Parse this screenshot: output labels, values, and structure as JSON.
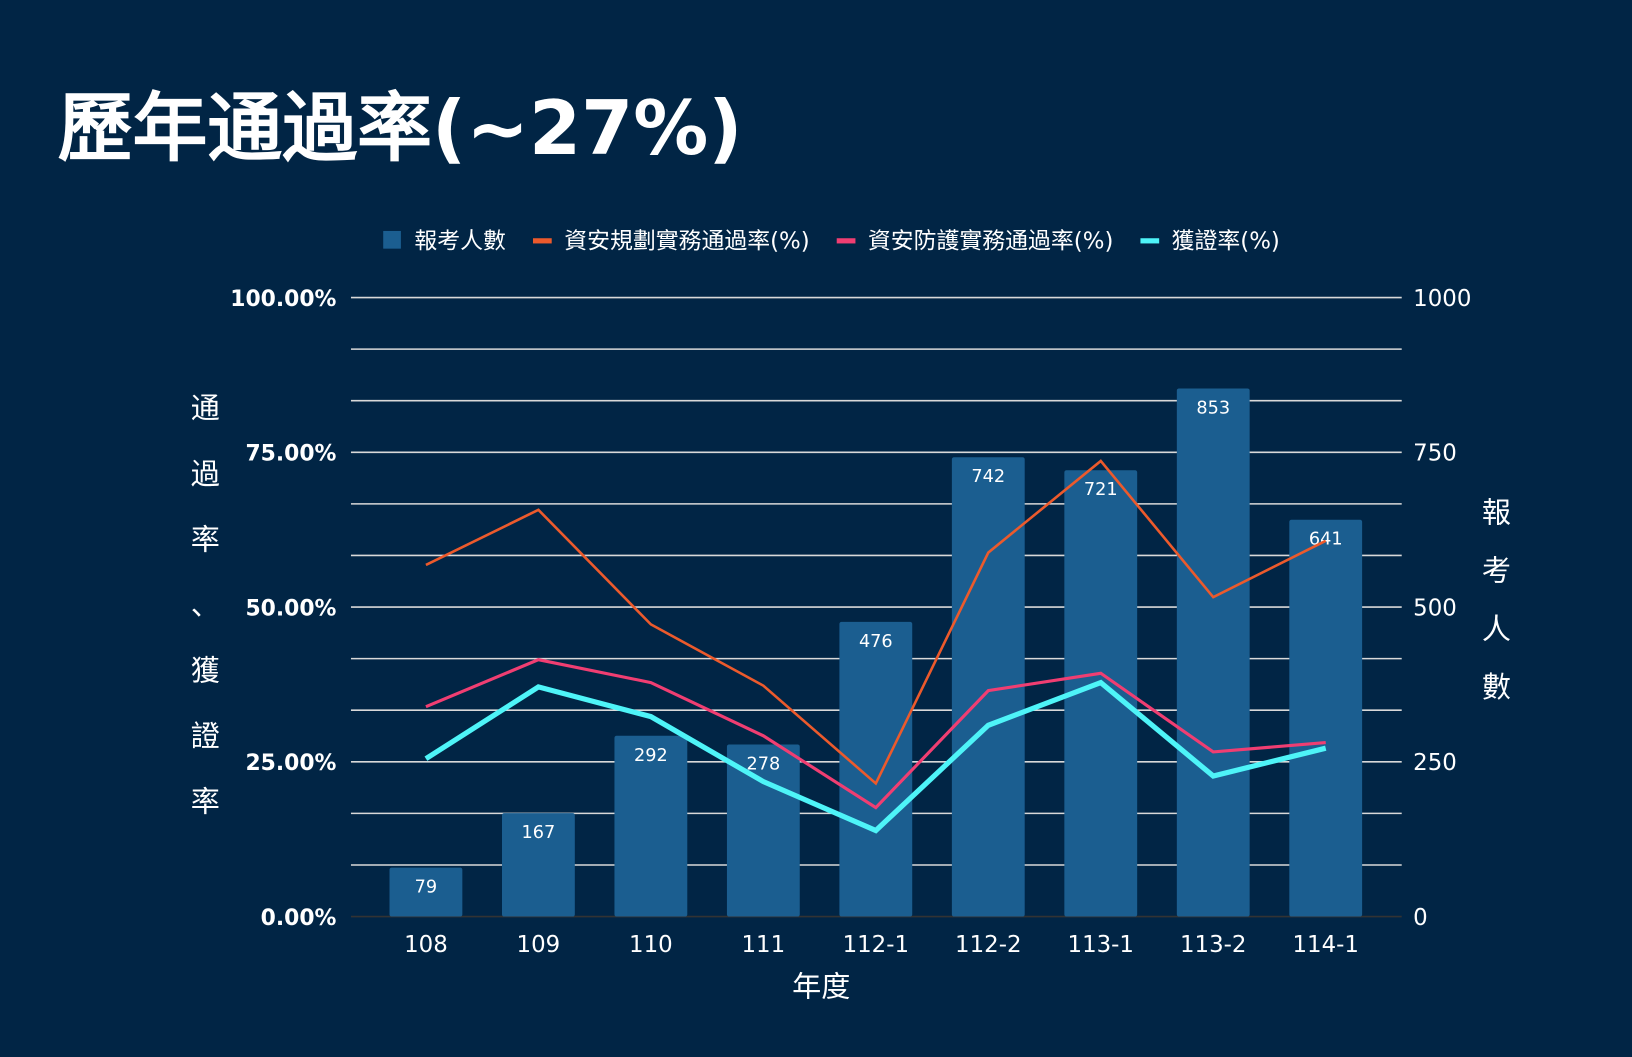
{
  "title": "歷年通過率(~27%)",
  "colors": {
    "background": "#012545",
    "bar": "#1b5e90",
    "planning": "#ec5a2c",
    "defense": "#f03e72",
    "cert": "#4ef4f8",
    "grid": "#d9d9d9",
    "text": "#ffffff"
  },
  "chart_data": {
    "type": "bar+line",
    "title": "歷年通過率(~27%)",
    "xlabel": "年度",
    "ylabel_left": "通過率、獲證率",
    "ylabel_right": "報考人數",
    "categories": [
      "108",
      "109",
      "110",
      "111",
      "112-1",
      "112-2",
      "113-1",
      "113-2",
      "114-1"
    ],
    "left_axis": {
      "range": [
        0,
        100
      ],
      "ticks": [
        "0.00%",
        "25.00%",
        "50.00%",
        "75.00%",
        "100.00%"
      ]
    },
    "right_axis": {
      "range": [
        0,
        1000
      ],
      "ticks": [
        "0",
        "250",
        "500",
        "750",
        "1000"
      ]
    },
    "grid": true,
    "legend_position": "top",
    "series": [
      {
        "name": "報考人數",
        "type": "bar",
        "axis": "right",
        "values": [
          79,
          167,
          292,
          278,
          476,
          742,
          721,
          853,
          641
        ]
      },
      {
        "name": "資安規劃實務通過率(%)",
        "type": "line",
        "axis": "left",
        "values": [
          56.8,
          65.7,
          47.2,
          37.3,
          21.5,
          58.8,
          73.6,
          51.6,
          60.7
        ]
      },
      {
        "name": "資安防護實務通過率(%)",
        "type": "line",
        "axis": "left",
        "values": [
          33.9,
          41.5,
          37.8,
          29.2,
          17.6,
          36.5,
          39.3,
          26.6,
          28.1
        ]
      },
      {
        "name": "獲證率(%)",
        "type": "line",
        "axis": "left",
        "values": [
          25.5,
          37.1,
          32.3,
          21.8,
          13.9,
          30.9,
          37.8,
          22.7,
          27.2
        ]
      }
    ]
  }
}
